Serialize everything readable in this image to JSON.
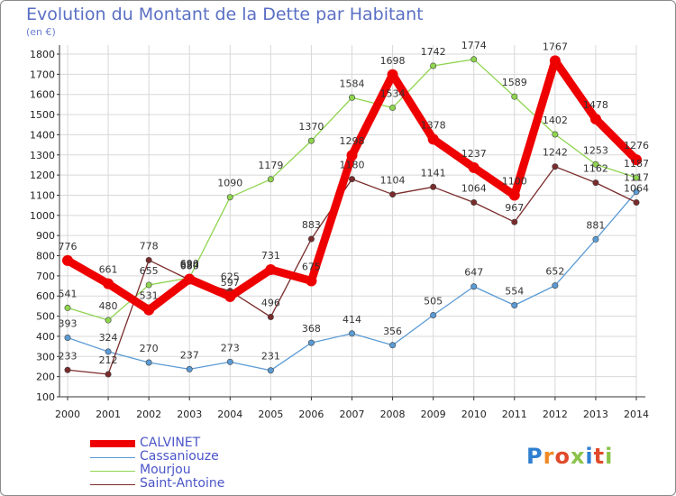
{
  "title": "Evolution du Montant de la Dette par Habitant",
  "unit_label": "(en €)",
  "logo_text": "Proxiti",
  "colors": {
    "title": "#5a6fc4",
    "legend_text": "#4a55c8",
    "grid": "#d8d8d8"
  },
  "chart_data": {
    "type": "line",
    "title": "Evolution du Montant de la Dette par Habitant",
    "ylabel": "(en €)",
    "xlabel": "",
    "ylim": [
      100,
      1800
    ],
    "yticks": [
      100,
      200,
      300,
      400,
      500,
      600,
      700,
      800,
      900,
      1000,
      1100,
      1200,
      1300,
      1400,
      1500,
      1600,
      1700,
      1800
    ],
    "grid": true,
    "legend_position": "bottom-left",
    "x": [
      "2000",
      "2001",
      "2002",
      "2003",
      "2004",
      "2005",
      "2006",
      "2007",
      "2008",
      "2009",
      "2010",
      "2011",
      "2012",
      "2013",
      "2014"
    ],
    "series": [
      {
        "name": "CALVINET",
        "color": "#ee0000",
        "values": [
          776,
          661,
          531,
          684,
          597,
          731,
          675,
          1298,
          1698,
          1378,
          1237,
          1100,
          1767,
          1478,
          1276
        ]
      },
      {
        "name": "Cassaniouze",
        "color": "#5b9bd5",
        "values": [
          393,
          324,
          270,
          237,
          273,
          231,
          368,
          414,
          356,
          505,
          647,
          554,
          652,
          881,
          1117
        ]
      },
      {
        "name": "Mourjou",
        "color": "#8fd44f",
        "values": [
          541,
          480,
          655,
          690,
          1090,
          1179,
          1370,
          1584,
          1534,
          1742,
          1774,
          1589,
          1402,
          1253,
          1187
        ]
      },
      {
        "name": "Saint-Antoine",
        "color": "#7a2b2b",
        "values": [
          233,
          212,
          778,
          680,
          625,
          496,
          883,
          1180,
          1104,
          1141,
          1064,
          967,
          1242,
          1162,
          1064
        ]
      }
    ]
  }
}
